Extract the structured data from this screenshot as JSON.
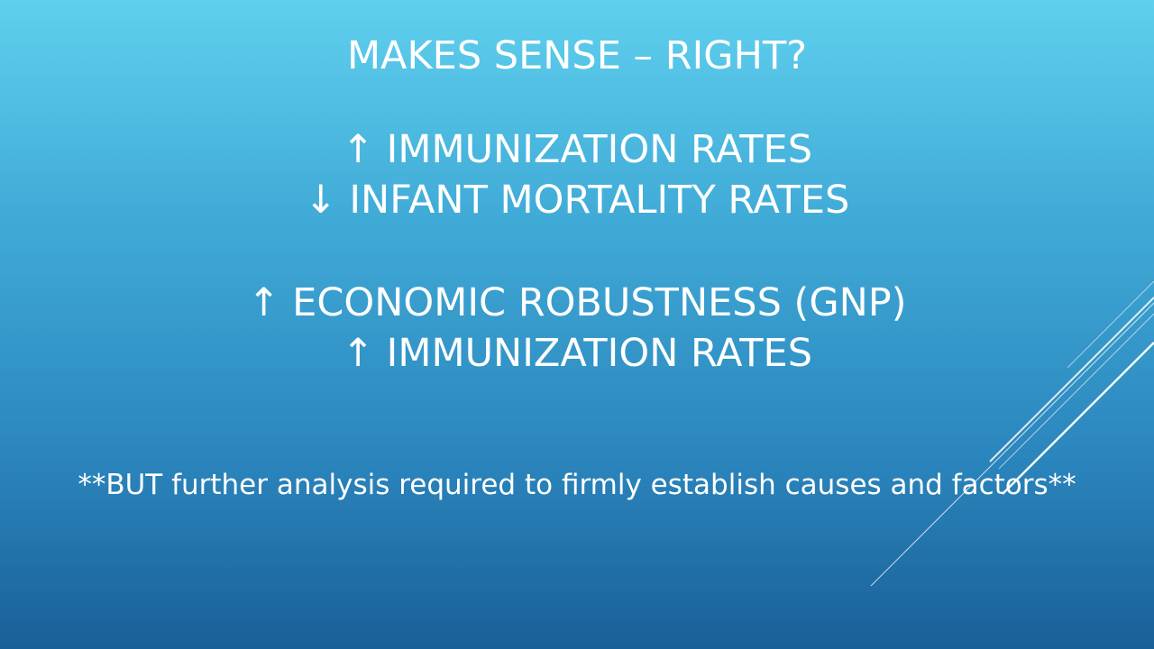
{
  "slide": {
    "title": "MAKES SENSE – RIGHT?",
    "point_1": "↑ IMMUNIZATION RATES",
    "point_2": "↓ INFANT MORTALITY RATES",
    "point_3": "↑ ECONOMIC ROBUSTNESS (GNP)",
    "point_4": "↑ IMMUNIZATION RATES",
    "note": "**BUT further analysis required to firmly establish causes and factors**"
  },
  "colors": {
    "text": "#ffffff",
    "background_top": "#5fd0ee",
    "background_bottom": "#1a5f98"
  }
}
